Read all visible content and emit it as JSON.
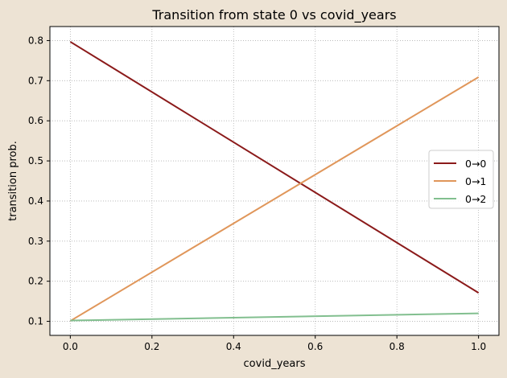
{
  "chart_data": {
    "type": "line",
    "title": "Transition from state 0 vs covid_years",
    "xlabel": "covid_years",
    "ylabel": "transition prob.",
    "xlim": [
      -0.05,
      1.05
    ],
    "ylim": [
      0.065,
      0.835
    ],
    "xticks": [
      0.0,
      0.2,
      0.4,
      0.6,
      0.8,
      1.0
    ],
    "xtick_labels": [
      "0.0",
      "0.2",
      "0.4",
      "0.6",
      "0.8",
      "1.0"
    ],
    "yticks": [
      0.1,
      0.2,
      0.3,
      0.4,
      0.5,
      0.6,
      0.7,
      0.8
    ],
    "ytick_labels": [
      "0.1",
      "0.2",
      "0.3",
      "0.4",
      "0.5",
      "0.6",
      "0.7",
      "0.8"
    ],
    "grid": true,
    "legend_position": "center-right",
    "series": [
      {
        "name": "0→0",
        "color": "#8b1a1a",
        "x": [
          0.0,
          1.0
        ],
        "y": [
          0.797,
          0.171
        ]
      },
      {
        "name": "0→1",
        "color": "#e0965a",
        "x": [
          0.0,
          1.0
        ],
        "y": [
          0.101,
          0.709
        ]
      },
      {
        "name": "0→2",
        "color": "#82bf8f",
        "x": [
          0.0,
          1.0
        ],
        "y": [
          0.102,
          0.12
        ]
      }
    ]
  },
  "colors": {
    "figure_background": "#ede3d4",
    "plot_background": "#ffffff",
    "grid": "#b0b0b0"
  }
}
